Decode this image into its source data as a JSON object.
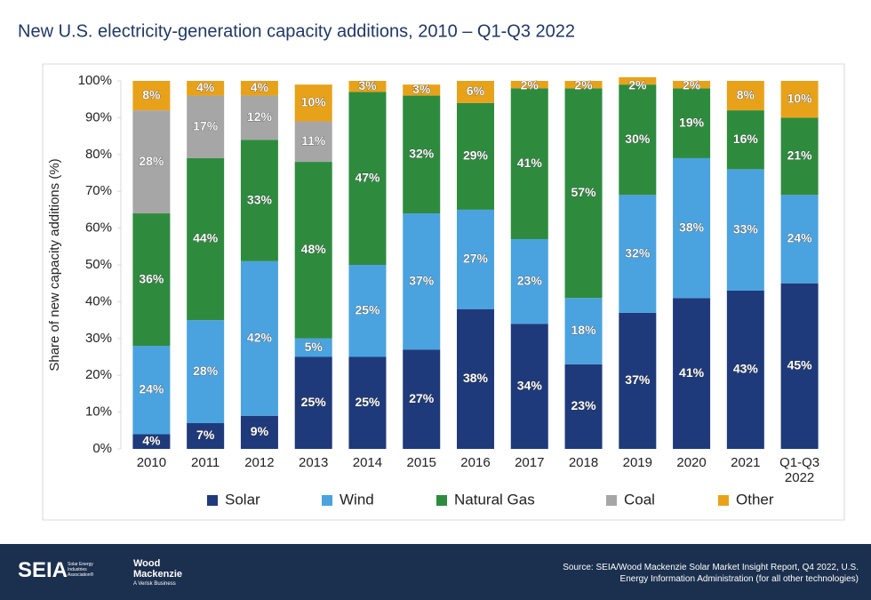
{
  "chart_data": {
    "type": "stacked_bar",
    "title": "New U.S. electricity-generation capacity additions, 2010 – Q1-Q3 2022",
    "y_label": "Share of new capacity additions (%)",
    "categories": [
      "2010",
      "2011",
      "2012",
      "2013",
      "2014",
      "2015",
      "2016",
      "2017",
      "2018",
      "2019",
      "2020",
      "2021",
      "Q1-Q3 2022"
    ],
    "series": [
      {
        "name": "Solar",
        "color": "#1f3a7a",
        "values": [
          4,
          7,
          9,
          25,
          25,
          27,
          38,
          34,
          23,
          37,
          41,
          43,
          45
        ],
        "value_labels": [
          "4%",
          "7%",
          "9%",
          "25%",
          "25%",
          "27%",
          "38%",
          "34%",
          "23%",
          "37%",
          "41%",
          "43%",
          "45%"
        ]
      },
      {
        "name": "Wind",
        "color": "#4aa3df",
        "values": [
          24,
          28,
          42,
          5,
          25,
          37,
          27,
          23,
          18,
          32,
          38,
          33,
          24
        ],
        "value_labels": [
          "24%",
          "28%",
          "42%",
          "5%",
          "25%",
          "37%",
          "27%",
          "23%",
          "18%",
          "32%",
          "38%",
          "33%",
          "24%"
        ]
      },
      {
        "name": "Natural Gas",
        "color": "#2e8b3e",
        "values": [
          36,
          44,
          33,
          48,
          47,
          32,
          29,
          41,
          57,
          30,
          19,
          16,
          21
        ],
        "value_labels": [
          "36%",
          "44%",
          "33%",
          "48%",
          "47%",
          "32%",
          "29%",
          "41%",
          "57%",
          "30%",
          "19%",
          "16%",
          "21%"
        ]
      },
      {
        "name": "Coal",
        "color": "#a6a6a6",
        "values": [
          28,
          17,
          12,
          11,
          null,
          null,
          null,
          null,
          null,
          null,
          null,
          null,
          null
        ],
        "value_labels": [
          "28%",
          "17%",
          "12%",
          "11%",
          null,
          null,
          null,
          null,
          null,
          null,
          null,
          null,
          null
        ]
      },
      {
        "name": "Other",
        "color": "#e8a21a",
        "values": [
          8,
          4,
          4,
          10,
          3,
          3,
          6,
          2,
          2,
          2,
          2,
          8,
          10
        ],
        "value_labels": [
          "8%",
          "4%",
          "4%",
          "10%",
          "3%",
          "3%",
          "6%",
          "2%",
          "2%",
          "2%",
          "2%",
          "8%",
          "10%"
        ]
      }
    ],
    "ylim": [
      0,
      100
    ],
    "yticks": [
      {
        "value": 0,
        "label": "0%"
      },
      {
        "value": 10,
        "label": "10%"
      },
      {
        "value": 20,
        "label": "20%"
      },
      {
        "value": 30,
        "label": "30%"
      },
      {
        "value": 40,
        "label": "40%"
      },
      {
        "value": 50,
        "label": "50%"
      },
      {
        "value": 60,
        "label": "60%"
      },
      {
        "value": 70,
        "label": "70%"
      },
      {
        "value": 80,
        "label": "80%"
      },
      {
        "value": 90,
        "label": "90%"
      },
      {
        "value": 100,
        "label": "100%"
      }
    ],
    "grid": false,
    "legend": "bottom"
  },
  "footer": {
    "source": "Source: SEIA/Wood Mackenzie Solar Market Insight Report, Q4 2022, U.S. Energy Information Administration (for all other technologies)",
    "seia_logo": "SEIA",
    "seia_name": "Solar Energy Industries Association®",
    "woodmac_logo": "Wood Mackenzie",
    "woodmac_sub": "A Verisk Business"
  }
}
